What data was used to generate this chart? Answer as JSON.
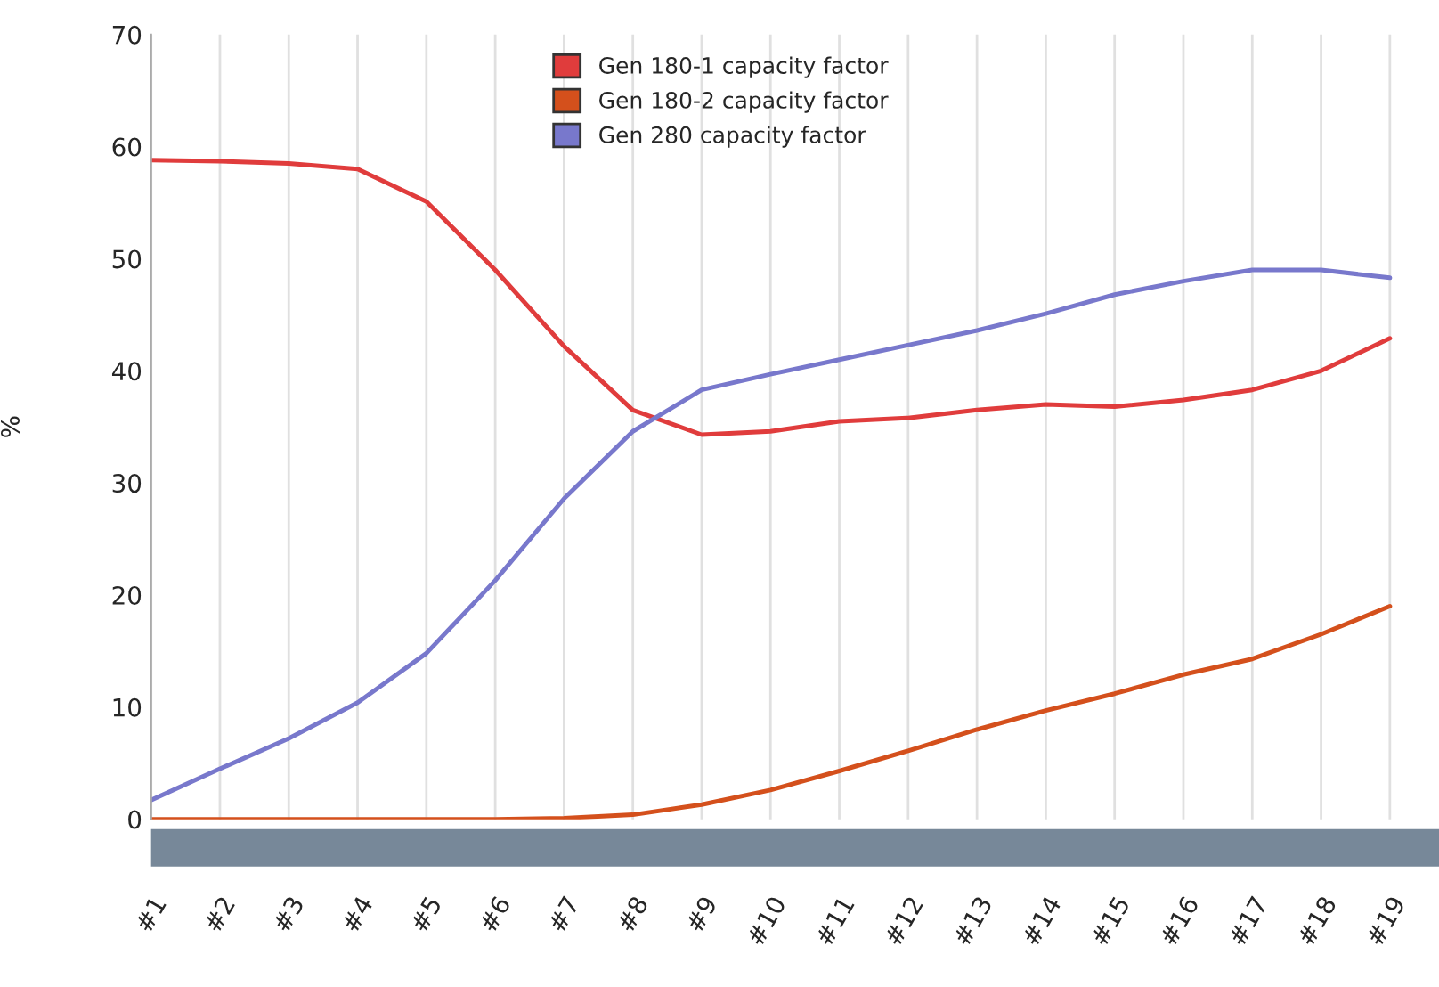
{
  "chart_data": {
    "type": "line",
    "ylabel": "%",
    "categories": [
      "#1",
      "#2",
      "#3",
      "#4",
      "#5",
      "#6",
      "#7",
      "#8",
      "#9",
      "#10",
      "#11",
      "#12",
      "#13",
      "#14",
      "#15",
      "#16",
      "#17",
      "#18",
      "#19"
    ],
    "series": [
      {
        "name": "Gen 180-1 capacity factor",
        "color": "#e03c3c",
        "values": [
          58.8,
          58.7,
          58.5,
          58,
          55.1,
          49,
          42.2,
          36.5,
          34.3,
          34.6,
          35.5,
          35.8,
          36.5,
          37,
          36.8,
          37.4,
          38.3,
          40,
          42.9
        ]
      },
      {
        "name": "Gen 180-2 capacity factor",
        "color": "#d4501c",
        "values": [
          0,
          0,
          0,
          0,
          0,
          0,
          0.1,
          0.4,
          1.3,
          2.6,
          4.3,
          6.1,
          8,
          9.7,
          11.2,
          12.9,
          14.3,
          16.5,
          19
        ]
      },
      {
        "name": "Gen 280 capacity factor",
        "color": "#7878cc",
        "values": [
          1.7,
          4.5,
          7.2,
          10.4,
          14.8,
          21.3,
          28.6,
          34.6,
          38.3,
          39.7,
          41,
          42.3,
          43.6,
          45.1,
          46.8,
          48,
          49,
          49,
          48.3
        ]
      }
    ],
    "ylim": [
      0,
      70
    ],
    "yticks": [
      0,
      10,
      20,
      30,
      40,
      50,
      60,
      70
    ],
    "grid": "x",
    "legend": "top",
    "marker": "none",
    "line_style": "solid"
  }
}
